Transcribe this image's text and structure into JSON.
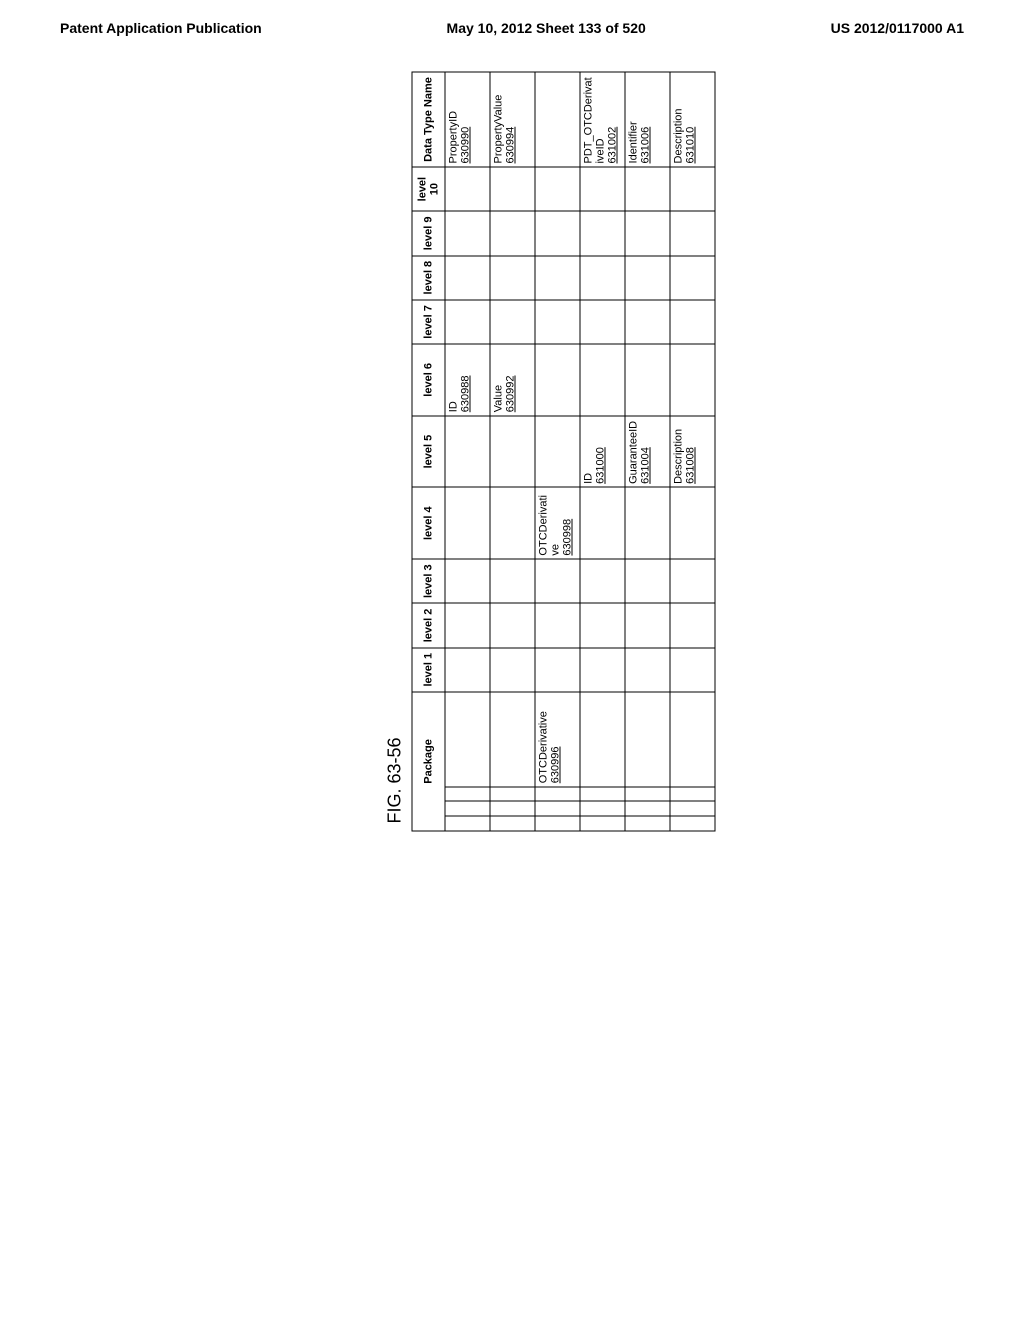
{
  "header": {
    "left": "Patent Application Publication",
    "center": "May 10, 2012  Sheet 133 of 520",
    "right": "US 2012/0117000 A1"
  },
  "figure_label": "FIG. 63-56",
  "columns": {
    "package": "Package",
    "levels": [
      "level 1",
      "level 2",
      "level 3",
      "level 4",
      "level 5",
      "level 6",
      "level 7",
      "level 8",
      "level 9",
      "level 10"
    ],
    "data_type": "Data Type Name"
  },
  "rows": [
    {
      "package": "",
      "l1": "",
      "l2": "",
      "l3": "",
      "l4": "",
      "l5": "",
      "l6": "ID",
      "l6ref": "630988",
      "l7": "",
      "l8": "",
      "l9": "",
      "l10": "",
      "dtype": "PropertyID",
      "dref": "630990"
    },
    {
      "package": "",
      "l1": "",
      "l2": "",
      "l3": "",
      "l4": "",
      "l5": "",
      "l6": "Value",
      "l6ref": "630992",
      "l7": "",
      "l8": "",
      "l9": "",
      "l10": "",
      "dtype": "PropertyValue",
      "dref": "630994"
    },
    {
      "package": "OTCDerivative",
      "pref": "630996",
      "l1": "",
      "l2": "",
      "l3": "",
      "l4": "OTCDerivative",
      "l4ref": "630998",
      "l5": "",
      "l6": "",
      "l7": "",
      "l8": "",
      "l9": "",
      "l10": "",
      "dtype": "",
      "dref": ""
    },
    {
      "package": "",
      "l1": "",
      "l2": "",
      "l3": "",
      "l4": "",
      "l5": "ID",
      "l5ref": "631000",
      "l6": "",
      "l7": "",
      "l8": "",
      "l9": "",
      "l10": "",
      "dtype": "PDT_OTCDerivativeID",
      "dref": "631002"
    },
    {
      "package": "",
      "l1": "",
      "l2": "",
      "l3": "",
      "l4": "",
      "l5": "GuaranteeID",
      "l5ref": "631004",
      "l6": "",
      "l7": "",
      "l8": "",
      "l9": "",
      "l10": "",
      "dtype": "Identifier",
      "dref": "631006"
    },
    {
      "package": "",
      "l1": "",
      "l2": "",
      "l3": "",
      "l4": "",
      "l5": "Description",
      "l5ref": "631008",
      "l6": "",
      "l7": "",
      "l8": "",
      "l9": "",
      "l10": "",
      "dtype": "Description",
      "dref": "631010"
    }
  ]
}
